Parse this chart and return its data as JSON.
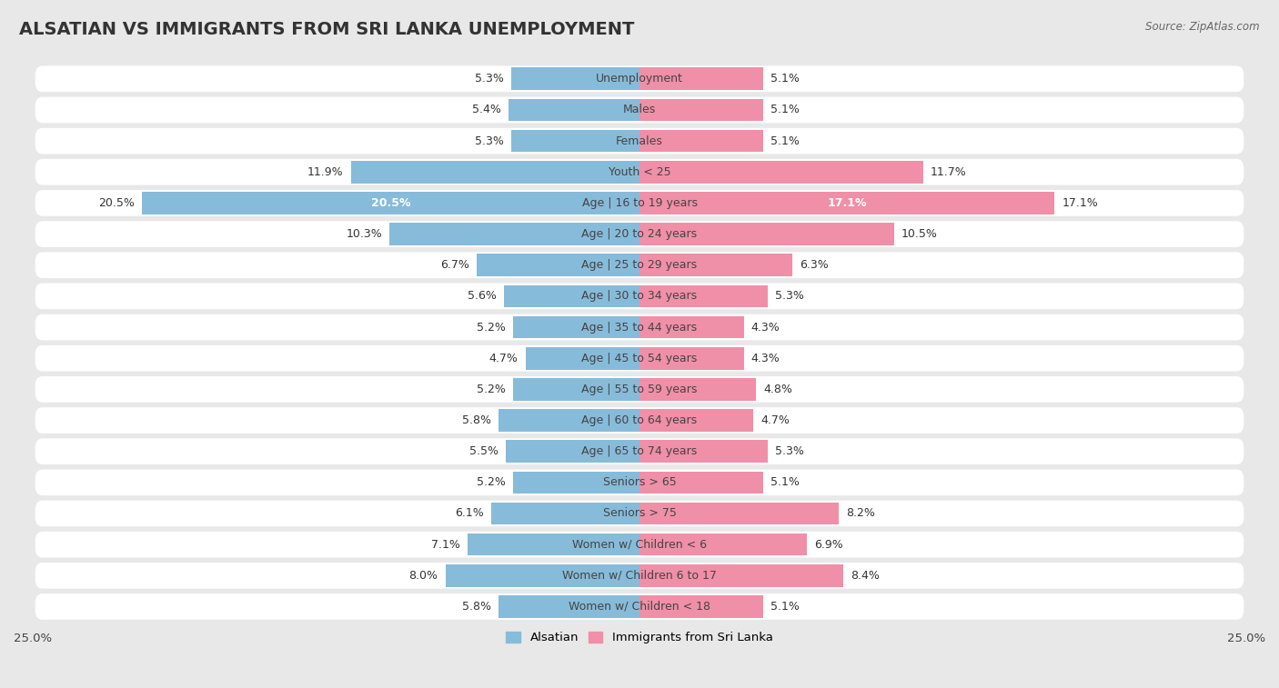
{
  "title": "ALSATIAN VS IMMIGRANTS FROM SRI LANKA UNEMPLOYMENT",
  "source": "Source: ZipAtlas.com",
  "categories": [
    "Unemployment",
    "Males",
    "Females",
    "Youth < 25",
    "Age | 16 to 19 years",
    "Age | 20 to 24 years",
    "Age | 25 to 29 years",
    "Age | 30 to 34 years",
    "Age | 35 to 44 years",
    "Age | 45 to 54 years",
    "Age | 55 to 59 years",
    "Age | 60 to 64 years",
    "Age | 65 to 74 years",
    "Seniors > 65",
    "Seniors > 75",
    "Women w/ Children < 6",
    "Women w/ Children 6 to 17",
    "Women w/ Children < 18"
  ],
  "alsatian": [
    5.3,
    5.4,
    5.3,
    11.9,
    20.5,
    10.3,
    6.7,
    5.6,
    5.2,
    4.7,
    5.2,
    5.8,
    5.5,
    5.2,
    6.1,
    7.1,
    8.0,
    5.8
  ],
  "sri_lanka": [
    5.1,
    5.1,
    5.1,
    11.7,
    17.1,
    10.5,
    6.3,
    5.3,
    4.3,
    4.3,
    4.8,
    4.7,
    5.3,
    5.1,
    8.2,
    6.9,
    8.4,
    5.1
  ],
  "alsatian_color": "#87BBDA",
  "sri_lanka_color": "#F08FA8",
  "alsatian_label": "Alsatian",
  "sri_lanka_label": "Immigrants from Sri Lanka",
  "xlim": 25.0,
  "bar_height": 0.72,
  "bg_color": "#e8e8e8",
  "row_bg_color": "#ffffff",
  "title_fontsize": 14,
  "label_fontsize": 9.5,
  "value_fontsize": 9,
  "category_fontsize": 9
}
